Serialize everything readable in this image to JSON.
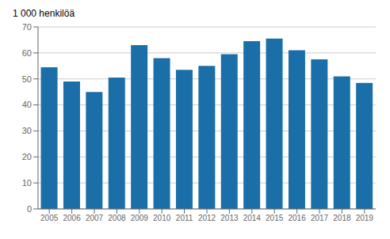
{
  "chart_data": {
    "type": "bar",
    "ylabel": "1 000 henkilöä",
    "categories": [
      "2005",
      "2006",
      "2007",
      "2008",
      "2009",
      "2010",
      "2011",
      "2012",
      "2013",
      "2014",
      "2015",
      "2016",
      "2017",
      "2018",
      "2019"
    ],
    "values": [
      54.5,
      49.0,
      45.0,
      50.5,
      63.0,
      58.0,
      53.5,
      55.0,
      59.5,
      64.5,
      65.5,
      61.0,
      57.5,
      51.0,
      48.5
    ],
    "color": "#1B6FA8",
    "ylim": [
      0,
      70
    ],
    "yticks": [
      0,
      10,
      20,
      30,
      40,
      50,
      60,
      70
    ],
    "grid": true
  }
}
